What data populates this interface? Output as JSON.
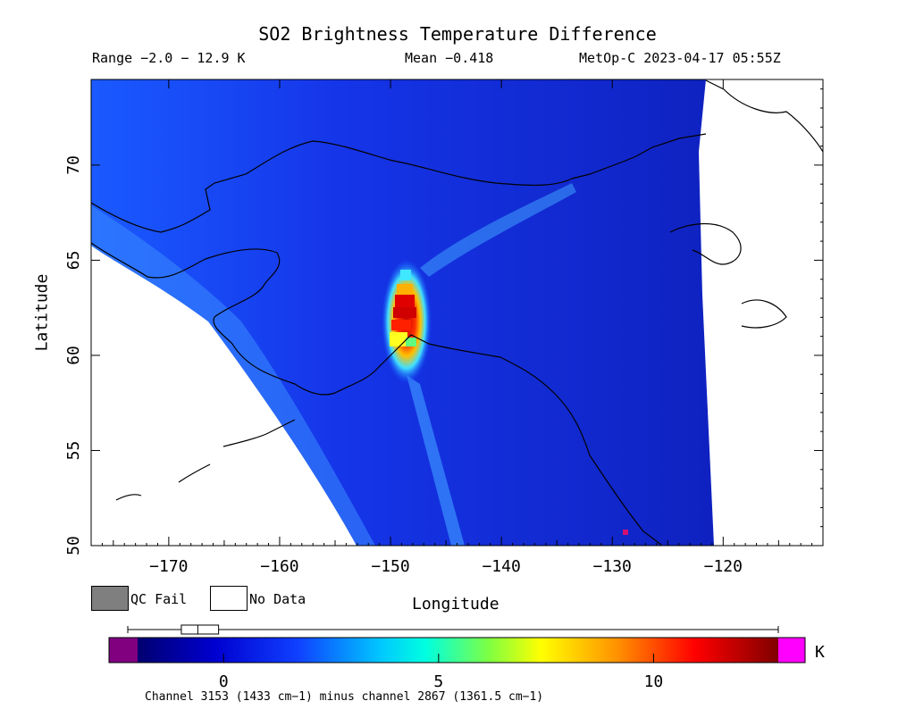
{
  "title": "SO2 Brightness Temperature Difference",
  "range_text": "Range −2.0 − 12.9 K",
  "mean_text": "Mean −0.418",
  "satellite_text": "MetOp-C 2023-04-17 05:55Z",
  "axes": {
    "xlabel": "Longitude",
    "ylabel": "Latitude",
    "xlim": [
      -177,
      -111
    ],
    "ylim": [
      50,
      74.5
    ],
    "xticks": [
      -170,
      -160,
      -150,
      -140,
      -130,
      -120
    ],
    "yticks": [
      50,
      55,
      60,
      65,
      70
    ]
  },
  "legend": {
    "qc_fail": "QC Fail",
    "no_data": "No Data"
  },
  "colorbar": {
    "min": -2.0,
    "max": 12.9,
    "ticks": [
      0,
      5,
      10
    ],
    "unit": "K",
    "boxplot": {
      "whisker_low": -2.0,
      "q1": -0.9,
      "median": -0.6,
      "q3": -0.2,
      "whisker_high": 12.9
    }
  },
  "footer": "Channel 3153 (1433 cm−1) minus channel 2867 (1361.5 cm−1)",
  "chart_data": {
    "type": "heatmap",
    "variable": "SO2 Brightness Temperature Difference",
    "units": "K",
    "range": [
      -2.0,
      12.9
    ],
    "mean": -0.418,
    "plume": [
      {
        "lon": -148.0,
        "lat": 63.5,
        "value": 4.0
      },
      {
        "lon": -147.8,
        "lat": 62.9,
        "value": 8.5
      },
      {
        "lon": -148.2,
        "lat": 62.5,
        "value": 12.5
      },
      {
        "lon": -148.4,
        "lat": 62.0,
        "value": 12.0
      },
      {
        "lon": -148.6,
        "lat": 61.5,
        "value": 11.0
      },
      {
        "lon": -148.8,
        "lat": 61.0,
        "value": 9.0
      },
      {
        "lon": -148.9,
        "lat": 60.5,
        "value": 7.0
      },
      {
        "lon": -148.5,
        "lat": 60.0,
        "value": 5.0
      },
      {
        "lon": -148.0,
        "lat": 59.3,
        "value": 3.0
      }
    ],
    "streaks": [
      {
        "lon": -144.0,
        "lat": 56.5,
        "value": 3.0
      },
      {
        "lon": -135.0,
        "lat": 68.5,
        "value": 2.5
      },
      {
        "lon": -140.0,
        "lat": 66.5,
        "value": 2.0
      }
    ],
    "background_value": -0.4
  }
}
